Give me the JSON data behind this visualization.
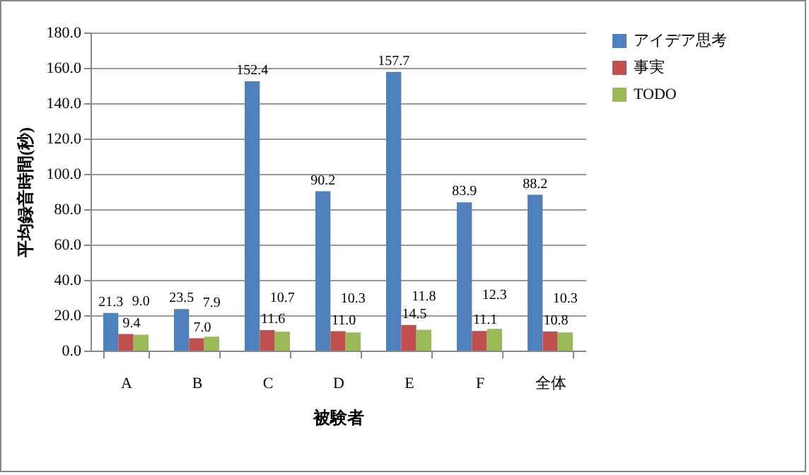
{
  "chart_data": {
    "type": "bar",
    "xlabel": "被験者",
    "ylabel": "平均録音時間(秒)",
    "categories": [
      "A",
      "B",
      "C",
      "D",
      "E",
      "F",
      "全体"
    ],
    "series": [
      {
        "name": "アイデア思考",
        "color": "#4f81bd",
        "values": [
          21.3,
          23.5,
          152.4,
          90.2,
          157.7,
          83.9,
          88.2
        ],
        "value_labels": [
          "21.3",
          "23.5",
          "152.4",
          "90.2",
          "157.7",
          "83.9",
          "88.2"
        ]
      },
      {
        "name": "事実",
        "color": "#c0504d",
        "values": [
          9.4,
          7.0,
          11.6,
          11.0,
          14.5,
          11.1,
          10.8
        ],
        "value_labels": [
          "9.4",
          "7.0",
          "11.6",
          "11.0",
          "14.5",
          "11.1",
          "10.8"
        ]
      },
      {
        "name": "TODO",
        "color": "#9bbb59",
        "values": [
          9.0,
          7.9,
          10.7,
          10.3,
          11.8,
          12.3,
          10.3
        ],
        "value_labels": [
          "9.0",
          "7.9",
          "10.7",
          "10.3",
          "11.8",
          "12.3",
          "10.3"
        ]
      }
    ],
    "ylim": [
      0,
      180
    ],
    "yticks": [
      {
        "value": 0,
        "label": "0.0"
      },
      {
        "value": 20,
        "label": "20.0"
      },
      {
        "value": 40,
        "label": "40.0"
      },
      {
        "value": 60,
        "label": "60.0"
      },
      {
        "value": 80,
        "label": "80.0"
      },
      {
        "value": 100,
        "label": "100.0"
      },
      {
        "value": 120,
        "label": "120.0"
      },
      {
        "value": 140,
        "label": "140.0"
      },
      {
        "value": 160,
        "label": "160.0"
      },
      {
        "value": 180,
        "label": "180.0"
      }
    ],
    "grid": "y",
    "legend": "right"
  }
}
